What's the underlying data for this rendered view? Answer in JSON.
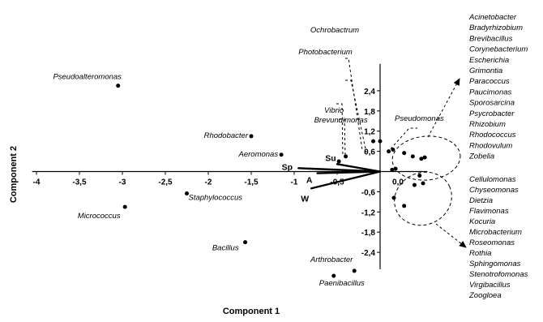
{
  "chart_data": {
    "type": "scatter",
    "title": "",
    "xlabel": "Component 1",
    "ylabel": "Component 2",
    "x_ticks": [
      "-4",
      "-3,5",
      "-3",
      "-2,5",
      "-2",
      "-1,5",
      "-1",
      "-0,5",
      "0,0"
    ],
    "x_tick_values": [
      -4,
      -3.5,
      -3,
      -2.5,
      -2,
      -1.5,
      -1,
      -0.5,
      0
    ],
    "y_ticks": [
      "2,4",
      "1,8",
      "1,2",
      "0,6",
      "-0,6",
      "-1,2",
      "-1,8",
      "-2,4"
    ],
    "y_tick_values": [
      2.4,
      1.8,
      1.2,
      0.6,
      -0.6,
      -1.2,
      -1.8,
      -2.4
    ],
    "xlim": [
      -4.05,
      0.55
    ],
    "ylim": [
      -2.9,
      3.2
    ],
    "grid": false,
    "points": [
      {
        "label": "Pseudoalteromonas",
        "x": -3.05,
        "y": 2.55
      },
      {
        "label": "Rhodobacter",
        "x": -1.5,
        "y": 1.05
      },
      {
        "label": "Aeromonas",
        "x": -1.15,
        "y": 0.5
      },
      {
        "label": "Staphylococcus",
        "x": -2.25,
        "y": -0.65
      },
      {
        "label": "Micrococcus",
        "x": -2.97,
        "y": -1.05
      },
      {
        "label": "Bacillus",
        "x": -1.57,
        "y": -2.1
      },
      {
        "label": "Arthrobacter",
        "x": -0.3,
        "y": -2.95
      },
      {
        "label": "Paenibacillus",
        "x": -0.54,
        "y": -3.1
      },
      {
        "label": "Vibrio",
        "x": -0.48,
        "y": 0.3
      },
      {
        "label": "Brevundimonas",
        "x": -0.4,
        "y": 0.45
      },
      {
        "label": "Ochrobactrum",
        "x": 0.0,
        "y": 0.9
      },
      {
        "label": "Photobacterium",
        "x": -0.08,
        "y": 0.9
      },
      {
        "label": "",
        "x": 0.1,
        "y": 0.6
      },
      {
        "label": "",
        "x": 0.15,
        "y": 0.65
      },
      {
        "label": "",
        "x": 0.28,
        "y": 0.55
      },
      {
        "label": "",
        "x": 0.38,
        "y": 0.45
      },
      {
        "label": "",
        "x": 0.48,
        "y": 0.38
      },
      {
        "label": "",
        "x": 0.52,
        "y": 0.42
      },
      {
        "label": "",
        "x": 0.14,
        "y": 0.05
      },
      {
        "label": "",
        "x": 0.18,
        "y": 0.08
      },
      {
        "label": "",
        "x": 0.46,
        "y": -0.12
      },
      {
        "label": "",
        "x": 0.5,
        "y": -0.35
      },
      {
        "label": "",
        "x": 0.4,
        "y": -0.4
      },
      {
        "label": "",
        "x": 0.16,
        "y": -0.78
      },
      {
        "label": "",
        "x": 0.28,
        "y": -1.02
      }
    ],
    "vectors": [
      {
        "label": "Su",
        "x": -0.5,
        "y": 0.22
      },
      {
        "label": "Sp",
        "x": -0.95,
        "y": 0.1
      },
      {
        "label": "A",
        "x": -0.73,
        "y": -0.05
      },
      {
        "label": "W",
        "x": -0.8,
        "y": -0.5
      }
    ],
    "upper_group_label": "Pseudomonas",
    "upper_group": [
      "Acinetobacter",
      "Bradyrhizobium",
      "Brevibacillus",
      "Corynebacterium",
      "Escherichia",
      "Grimontia",
      "Paracoccus",
      "Paucimonas",
      "Sporosarcina",
      "Psycrobacter",
      "Rhizobium",
      "Rhodococcus",
      "Rhodovulum",
      "Zobelia"
    ],
    "lower_group": [
      "Cellulomonas",
      "Chyseomonas",
      "Dietzia",
      "Flavimonas",
      "Kocuria",
      "Microbacterium",
      "Roseomonas",
      "Rothia",
      "Sphingomonas",
      "Stenotrofomonas",
      "Virgibacillus",
      "Zoogloea"
    ]
  }
}
